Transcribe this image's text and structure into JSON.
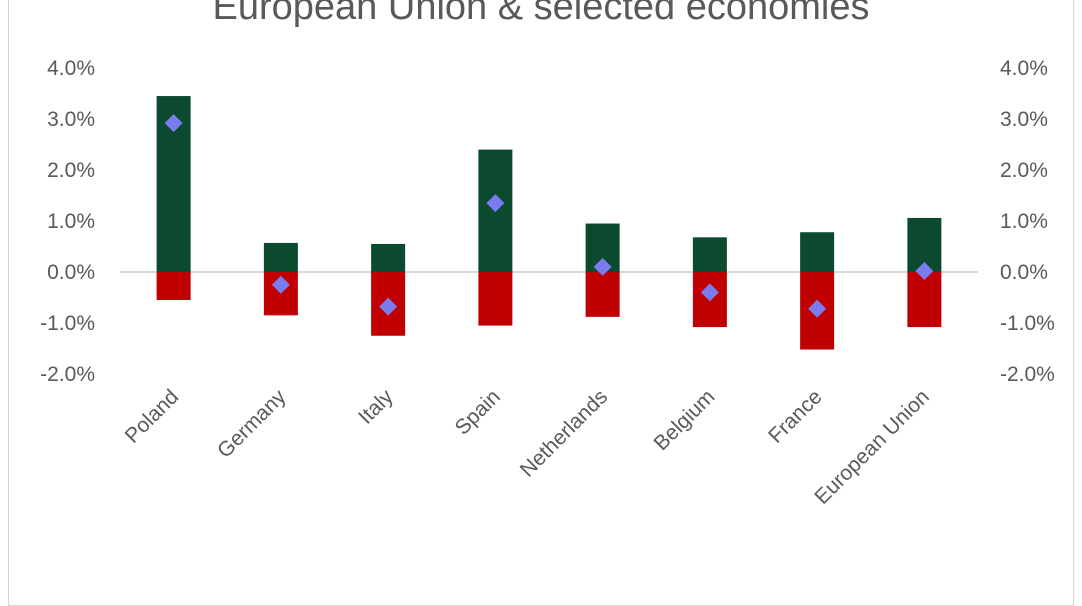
{
  "chart_data": {
    "type": "bar",
    "title": "European Union & selected economies",
    "categories": [
      "Poland",
      "Germany",
      "Italy",
      "Spain",
      "Netherlands",
      "Belgium",
      "France",
      "European Union"
    ],
    "series": [
      {
        "values": [
          3.45,
          0.57,
          0.55,
          2.4,
          0.95,
          0.68,
          0.78,
          1.06
        ],
        "color": "#0b4a2e",
        "kind": "stacked-bar"
      },
      {
        "values": [
          -0.55,
          -0.85,
          -1.25,
          -1.05,
          -0.88,
          -1.08,
          -1.52,
          -1.08
        ],
        "color": "#c00000",
        "kind": "stacked-bar"
      },
      {
        "values": [
          2.92,
          -0.25,
          -0.68,
          1.35,
          0.1,
          -0.4,
          -0.72,
          0.02
        ],
        "color": "#7b7bf0",
        "kind": "diamond-marker"
      }
    ],
    "yticks": [
      "4.0%",
      "3.0%",
      "2.0%",
      "1.0%",
      "0.0%",
      "-1.0%",
      "-2.0%"
    ],
    "ylim": [
      -2,
      4
    ],
    "secondary_axis": true,
    "gridlines": false,
    "legend": "none",
    "zero_line_color": "#d9d9d9"
  }
}
